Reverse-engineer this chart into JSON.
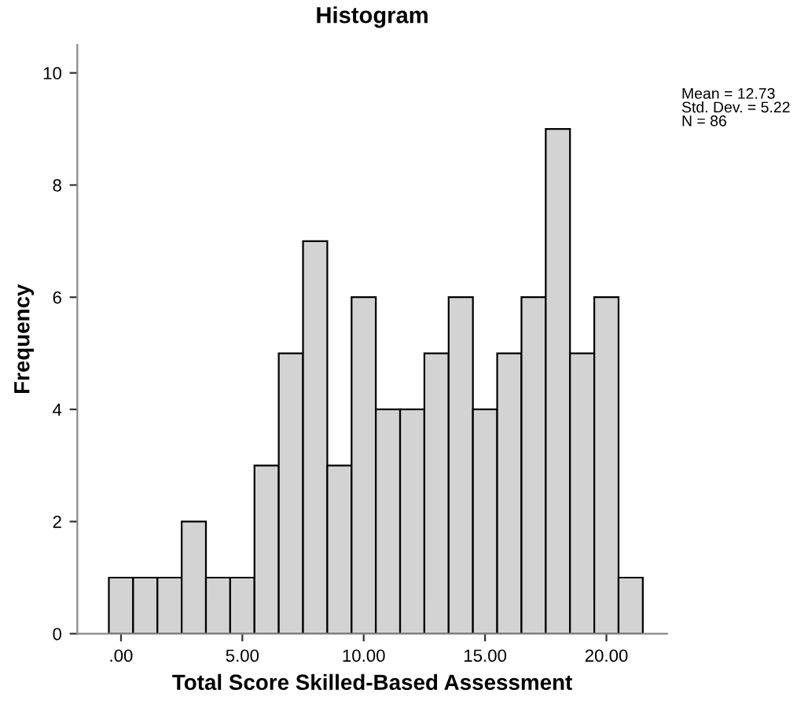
{
  "chart_data": {
    "type": "histogram",
    "title": "Histogram",
    "xlabel": "Total Score Skilled-Based Assessment",
    "ylabel": "Frequency",
    "bins": [
      -0.5,
      0.5,
      1.5,
      2.5,
      3.5,
      4.5,
      5.5,
      6.5,
      7.5,
      8.5,
      9.5,
      10.5,
      11.5,
      12.5,
      13.5,
      14.5,
      15.5,
      16.5,
      17.5,
      18.5,
      19.5,
      20.5,
      21.5
    ],
    "values": [
      1,
      1,
      1,
      2,
      1,
      1,
      3,
      5,
      7,
      3,
      6,
      4,
      4,
      5,
      6,
      4,
      5,
      6,
      9,
      5,
      6,
      1
    ],
    "color": "#d3d3d3",
    "xlim": [
      -1.8,
      22.5
    ],
    "xticks": [
      {
        "value": 0,
        "label": ".00"
      },
      {
        "value": 5,
        "label": "5.00"
      },
      {
        "value": 10,
        "label": "10.00"
      },
      {
        "value": 15,
        "label": "15.00"
      },
      {
        "value": 20,
        "label": "20.00"
      }
    ],
    "ylim": [
      0,
      10.5
    ],
    "yticks": [
      0,
      2,
      4,
      6,
      8,
      10
    ],
    "grid": false,
    "annotations": [
      "Mean = 12.73\nStd. Dev. = 5.22\nN = 86"
    ]
  }
}
